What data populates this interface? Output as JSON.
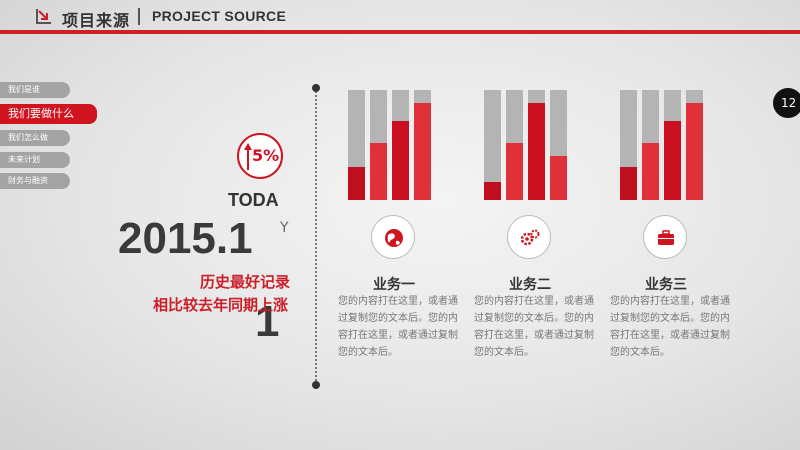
{
  "header": {
    "title_cn": "项目来源",
    "title_en": "PROJECT SOURCE",
    "accent_color": "#cc1f2a"
  },
  "nav": {
    "items": [
      {
        "label": "我们是谁",
        "active": false
      },
      {
        "label": "我们要做什么",
        "active": true
      },
      {
        "label": "我们怎么做",
        "active": false
      },
      {
        "label": "未来计划",
        "active": false
      },
      {
        "label": "财务与融资",
        "active": false
      }
    ]
  },
  "page_number": "12",
  "highlight": {
    "percent": "5%",
    "today": "TODA",
    "today_suffix": "Y",
    "year": "2015.1",
    "year_suffix": "1",
    "line1": "历史最好记录",
    "line2": "相比较去年同期上涨"
  },
  "businesses": [
    {
      "title": "业务一",
      "icon": "globe-icon",
      "text": "您的内容打在这里，或者通过复制您的文本后。您的内容打在这里，或者通过复制您的文本后。",
      "bars": [
        0.3,
        0.52,
        0.72,
        0.88
      ]
    },
    {
      "title": "业务二",
      "icon": "gears-icon",
      "text": "您的内容打在这里，或者通过复制您的文本后。您的内容打在这里，或者通过复制您的文本后。",
      "bars": [
        0.16,
        0.52,
        0.88,
        0.4
      ]
    },
    {
      "title": "业务三",
      "icon": "briefcase-icon",
      "text": "您的内容打在这里，或者通过复制您的文本后。您的内容打在这里，或者通过复制您的文本后。",
      "bars": [
        0.3,
        0.52,
        0.72,
        0.88
      ]
    }
  ],
  "bar_colors": [
    "#c01020",
    "#e03038",
    "#c8101e",
    "#e0303a"
  ]
}
